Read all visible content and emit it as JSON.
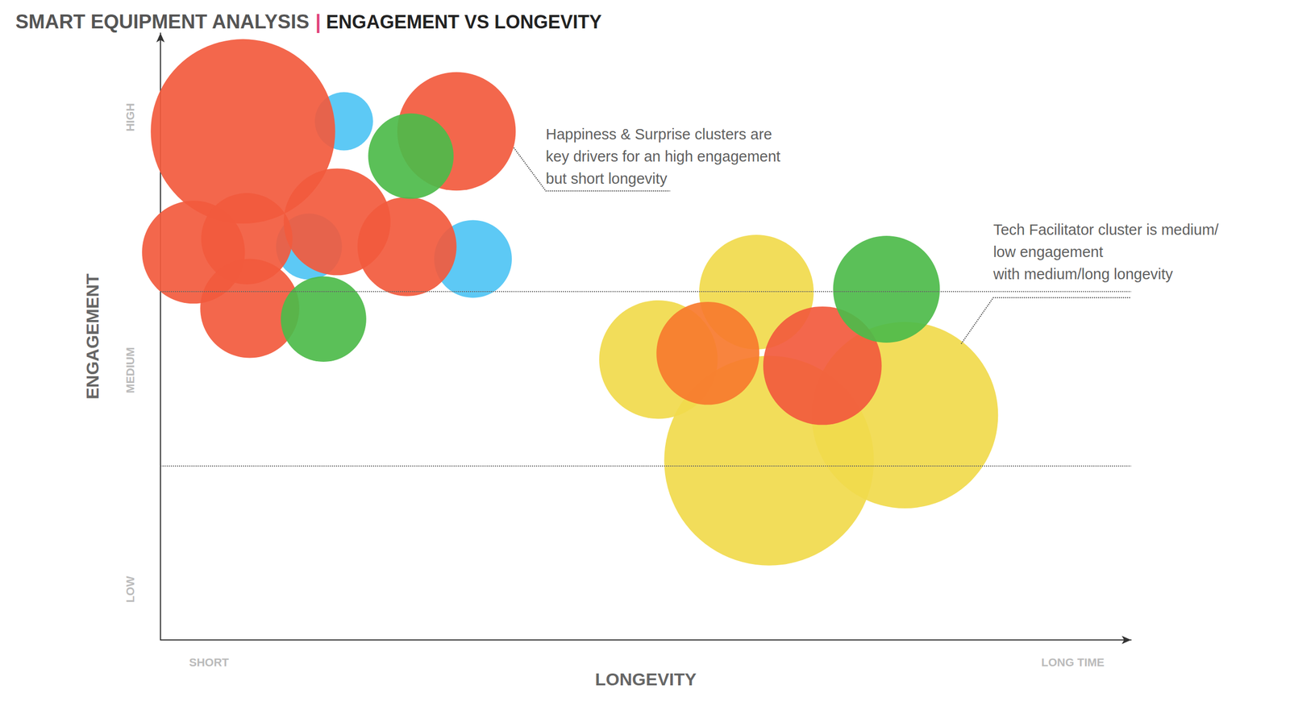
{
  "chart_data": {
    "type": "bubble",
    "title": "SMART EQUIPMENT ANALYSIS | ENGAGEMENT VS LONGEVITY",
    "x_label": "LONGEVITY",
    "y_label": "ENGAGEMENT",
    "xlim": [
      0,
      100
    ],
    "ylim": [
      0,
      108
    ],
    "xticks": [
      {
        "value": 5,
        "label": "SHORT"
      },
      {
        "value": 94,
        "label": "LONG TIME"
      }
    ],
    "yticks": [
      {
        "value": 9,
        "label": "LOW"
      },
      {
        "value": 48,
        "label": "MEDIUM"
      },
      {
        "value": 93,
        "label": "HIGH"
      }
    ],
    "grid": false,
    "thresholds": [
      62,
      31
    ],
    "series": [
      {
        "color": "#4fc4f4",
        "x": [
          18.9,
          32.2,
          15.3
        ],
        "y": [
          92.3,
          67.8,
          70.0
        ],
        "sizes": [
          3.0,
          4.0,
          3.4
        ]
      },
      {
        "color": "#f1da4c",
        "x": [
          61.4,
          51.3,
          62.7,
          76.7
        ],
        "y": [
          61.9,
          49.9,
          31.9,
          40.0
        ],
        "sizes": [
          5.9,
          6.1,
          10.8,
          9.6
        ]
      },
      {
        "color": "#f25a3d",
        "x": [
          8.5,
          30.5,
          3.4,
          8.9,
          18.2,
          25.4,
          9.2,
          68.2
        ],
        "y": [
          90.5,
          90.5,
          69.0,
          71.4,
          74.4,
          70.0,
          59.0,
          48.8
        ],
        "sizes": [
          9.5,
          6.1,
          5.3,
          4.7,
          5.5,
          5.1,
          5.1,
          6.1
        ]
      },
      {
        "color": "#f7792e",
        "x": [
          56.4
        ],
        "y": [
          51.0
        ],
        "sizes": [
          5.3
        ]
      },
      {
        "color": "#4dbb4a",
        "x": [
          25.8,
          16.8,
          74.8
        ],
        "y": [
          86.1,
          57.1,
          62.4
        ],
        "sizes": [
          4.4,
          4.4,
          5.5
        ]
      }
    ],
    "annotations": [
      {
        "text": [
          "Happiness & Surprise clusters are",
          "key drivers for an high engagement",
          "but short longevity"
        ],
        "x": 39.7,
        "y": 92,
        "leader": [
          [
            36.4,
            87.6
          ],
          [
            39.7,
            79.9
          ],
          [
            52.5,
            79.9
          ]
        ]
      },
      {
        "text": [
          "Tech Facilitator cluster is medium/",
          "low engagement",
          "with medium/long longevity"
        ],
        "x": 85.8,
        "y": 75,
        "leader": [
          [
            82.5,
            52.7
          ],
          [
            85.8,
            60.9
          ],
          [
            100,
            60.9
          ]
        ]
      }
    ]
  }
}
